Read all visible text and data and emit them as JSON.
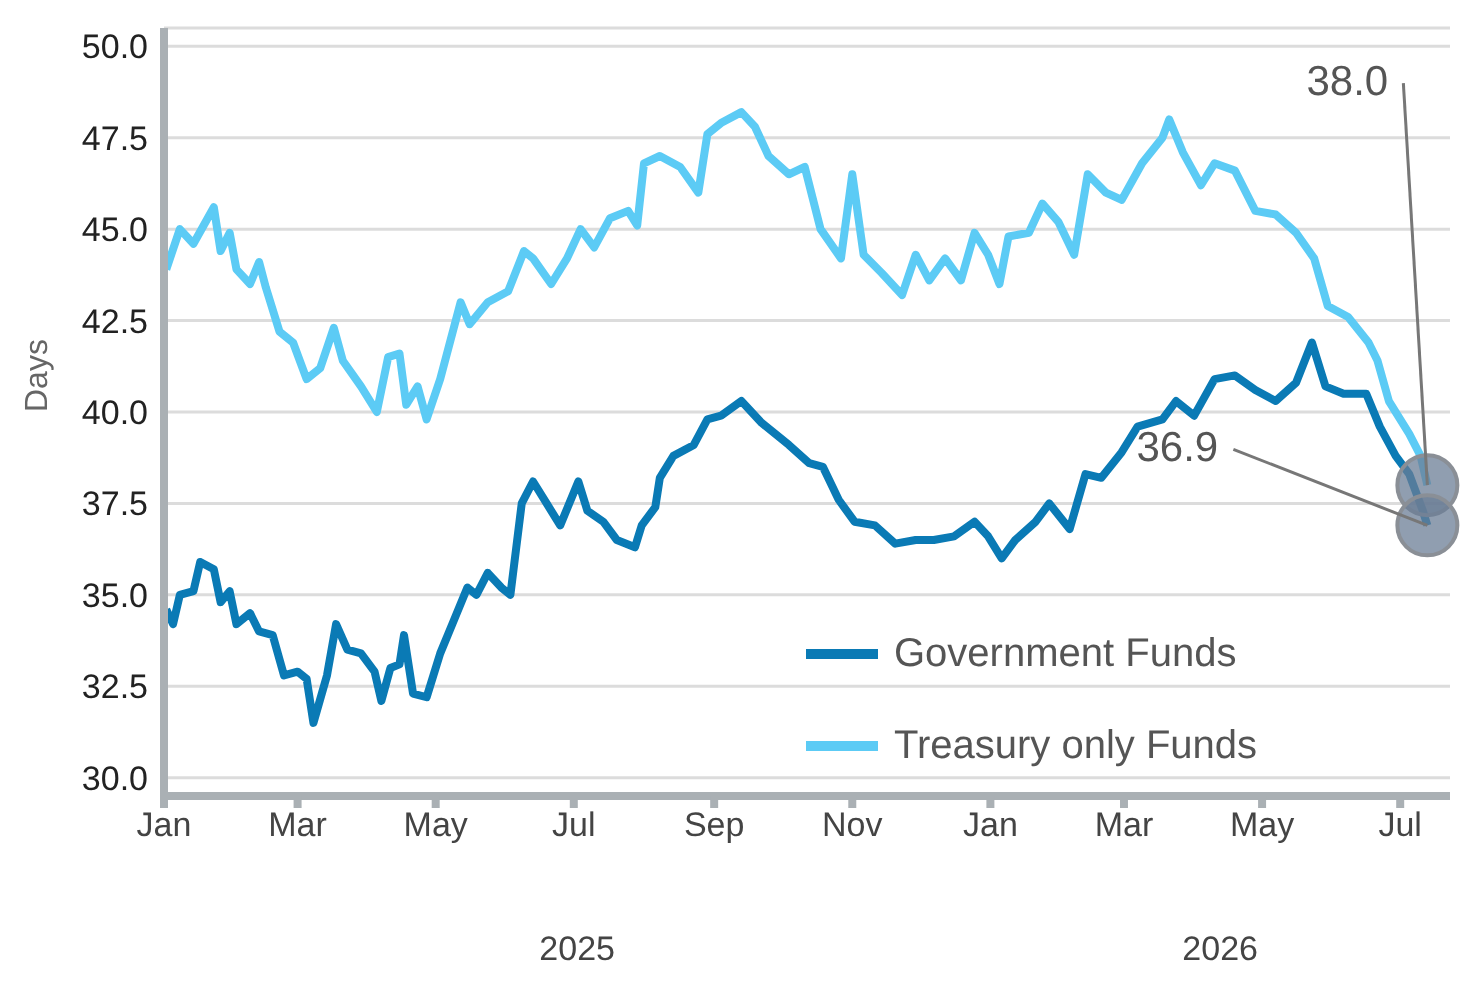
{
  "chart_data": {
    "type": "line",
    "ylabel": "Days",
    "ylim": [
      29.5,
      50.5
    ],
    "yticks": [
      {
        "value": 30,
        "label": "30.0"
      },
      {
        "value": 32.5,
        "label": "32.5"
      },
      {
        "value": 35,
        "label": "35.0"
      },
      {
        "value": 37.5,
        "label": "37.5"
      },
      {
        "value": 40,
        "label": "40.0"
      },
      {
        "value": 42.5,
        "label": "42.5"
      },
      {
        "value": 45,
        "label": "45.0"
      },
      {
        "value": 47.5,
        "label": "47.5"
      },
      {
        "value": 50,
        "label": "50.0"
      }
    ],
    "xlim": [
      "2025-01-01",
      "2026-07-23"
    ],
    "xticks": [
      {
        "value": "2025-01-01",
        "label": "Jan"
      },
      {
        "value": "2025-03-01",
        "label": "Mar"
      },
      {
        "value": "2025-05-01",
        "label": "May"
      },
      {
        "value": "2025-07-01",
        "label": "Jul"
      },
      {
        "value": "2025-09-01",
        "label": "Sep"
      },
      {
        "value": "2025-11-01",
        "label": "Nov"
      },
      {
        "value": "2026-01-01",
        "label": "Jan"
      },
      {
        "value": "2026-03-01",
        "label": "Mar"
      },
      {
        "value": "2026-05-01",
        "label": "May"
      },
      {
        "value": "2026-07-01",
        "label": "Jul"
      }
    ],
    "grid": "y",
    "legend": "bottom right",
    "marker": "none",
    "line_style": "solid",
    "annotations": [
      "2025",
      "2026",
      {
        "text": "38.0",
        "x": "2026-07-13",
        "y": 38.0
      },
      {
        "text": "36.9",
        "x": "2026-07-13",
        "y": 36.9
      }
    ],
    "series": [
      {
        "name": "Government Funds",
        "color": "#0a7ab5",
        "x": [
          "2025-01-02",
          "2025-01-05",
          "2025-01-08",
          "2025-01-14",
          "2025-01-17",
          "2025-01-23",
          "2025-01-26",
          "2025-01-30",
          "2025-02-02",
          "2025-02-08",
          "2025-02-12",
          "2025-02-18",
          "2025-02-23",
          "2025-03-01",
          "2025-03-05",
          "2025-03-08",
          "2025-03-14",
          "2025-03-18",
          "2025-03-23",
          "2025-03-29",
          "2025-04-04",
          "2025-04-07",
          "2025-04-11",
          "2025-04-15",
          "2025-04-17",
          "2025-04-21",
          "2025-04-27",
          "2025-05-03",
          "2025-05-09",
          "2025-05-15",
          "2025-05-19",
          "2025-05-24",
          "2025-05-30",
          "2025-06-03",
          "2025-06-08",
          "2025-06-13",
          "2025-06-19",
          "2025-06-25",
          "2025-07-03",
          "2025-07-07",
          "2025-07-14",
          "2025-07-20",
          "2025-07-28",
          "2025-07-31",
          "2025-08-06",
          "2025-08-08",
          "2025-08-14",
          "2025-08-23",
          "2025-08-29",
          "2025-09-04",
          "2025-09-13",
          "2025-09-22",
          "2025-10-04",
          "2025-10-13",
          "2025-10-19",
          "2025-10-26",
          "2025-11-02",
          "2025-11-11",
          "2025-11-20",
          "2025-11-29",
          "2025-12-07",
          "2025-12-16",
          "2025-12-25",
          "2025-12-31",
          "2026-01-06",
          "2026-01-12",
          "2026-01-21",
          "2026-01-27",
          "2026-02-05",
          "2026-02-12",
          "2026-02-19",
          "2026-02-28",
          "2026-03-07",
          "2026-03-18",
          "2026-03-24",
          "2026-04-01",
          "2026-04-10",
          "2026-04-19",
          "2026-04-28",
          "2026-05-07",
          "2026-05-16",
          "2026-05-23",
          "2026-05-29",
          "2026-06-06",
          "2026-06-16",
          "2026-06-22",
          "2026-06-29",
          "2026-07-05",
          "2026-07-11",
          "2026-07-13"
        ],
        "values": [
          34.6,
          34.2,
          35.0,
          35.1,
          35.9,
          35.7,
          34.8,
          35.1,
          34.2,
          34.5,
          34.0,
          33.9,
          32.8,
          32.9,
          32.7,
          31.5,
          32.8,
          34.2,
          33.5,
          33.4,
          32.9,
          32.1,
          33.0,
          33.1,
          33.9,
          32.3,
          32.2,
          33.4,
          34.3,
          35.2,
          35.0,
          35.6,
          35.2,
          35.0,
          37.5,
          38.1,
          37.5,
          36.9,
          38.1,
          37.3,
          37.0,
          36.5,
          36.3,
          36.9,
          37.4,
          38.2,
          38.8,
          39.1,
          39.8,
          39.9,
          40.3,
          39.7,
          39.1,
          38.6,
          38.5,
          37.6,
          37.0,
          36.9,
          36.4,
          36.5,
          36.5,
          36.6,
          37.0,
          36.6,
          36.0,
          36.5,
          37.0,
          37.5,
          36.8,
          38.3,
          38.2,
          38.9,
          39.6,
          39.8,
          40.3,
          39.9,
          40.9,
          41.0,
          40.6,
          40.3,
          40.8,
          41.9,
          40.7,
          40.5,
          40.5,
          39.6,
          38.8,
          38.3,
          37.3,
          36.9
        ]
      },
      {
        "name": "Treasury only Funds",
        "color": "#5ccbf5",
        "x": [
          "2025-01-02",
          "2025-01-08",
          "2025-01-14",
          "2025-01-23",
          "2025-01-26",
          "2025-01-30",
          "2025-02-02",
          "2025-02-08",
          "2025-02-12",
          "2025-02-15",
          "2025-02-21",
          "2025-02-27",
          "2025-03-05",
          "2025-03-11",
          "2025-03-17",
          "2025-03-21",
          "2025-03-29",
          "2025-04-05",
          "2025-04-10",
          "2025-04-15",
          "2025-04-18",
          "2025-04-23",
          "2025-04-27",
          "2025-05-03",
          "2025-05-12",
          "2025-05-16",
          "2025-05-24",
          "2025-06-02",
          "2025-06-09",
          "2025-06-13",
          "2025-06-21",
          "2025-06-28",
          "2025-07-04",
          "2025-07-10",
          "2025-07-17",
          "2025-07-25",
          "2025-07-29",
          "2025-08-01",
          "2025-08-08",
          "2025-08-17",
          "2025-08-25",
          "2025-08-29",
          "2025-09-04",
          "2025-09-13",
          "2025-09-19",
          "2025-09-25",
          "2025-10-04",
          "2025-10-11",
          "2025-10-18",
          "2025-10-27",
          "2025-11-01",
          "2025-11-06",
          "2025-11-14",
          "2025-11-23",
          "2025-11-29",
          "2025-12-05",
          "2025-12-12",
          "2025-12-19",
          "2025-12-25",
          "2025-12-31",
          "2026-01-05",
          "2026-01-09",
          "2026-01-18",
          "2026-01-24",
          "2026-01-31",
          "2026-02-07",
          "2026-02-13",
          "2026-02-21",
          "2026-02-28",
          "2026-03-09",
          "2026-03-18",
          "2026-03-21",
          "2026-03-27",
          "2026-04-04",
          "2026-04-10",
          "2026-04-19",
          "2026-04-28",
          "2026-05-07",
          "2026-05-16",
          "2026-05-24",
          "2026-05-30",
          "2026-06-08",
          "2026-06-17",
          "2026-06-21",
          "2026-06-26",
          "2026-07-05",
          "2026-07-10",
          "2026-07-13"
        ],
        "values": [
          43.9,
          45.0,
          44.6,
          45.6,
          44.4,
          44.9,
          43.9,
          43.5,
          44.1,
          43.4,
          42.2,
          41.9,
          40.9,
          41.2,
          42.3,
          41.4,
          40.7,
          40.0,
          41.5,
          41.6,
          40.2,
          40.7,
          39.8,
          40.9,
          43.0,
          42.4,
          43.0,
          43.3,
          44.4,
          44.2,
          43.5,
          44.2,
          45.0,
          44.5,
          45.3,
          45.5,
          45.1,
          46.8,
          47.0,
          46.7,
          46.0,
          47.6,
          47.9,
          48.2,
          47.8,
          47.0,
          46.5,
          46.7,
          45.0,
          44.2,
          46.5,
          44.3,
          43.8,
          43.2,
          44.3,
          43.6,
          44.2,
          43.6,
          44.9,
          44.3,
          43.5,
          44.8,
          44.9,
          45.7,
          45.2,
          44.3,
          46.5,
          46.0,
          45.8,
          46.8,
          47.5,
          48.0,
          47.1,
          46.2,
          46.8,
          46.6,
          45.5,
          45.4,
          44.9,
          44.2,
          42.9,
          42.6,
          41.9,
          41.4,
          40.3,
          39.4,
          38.8,
          38.0
        ]
      }
    ]
  }
}
